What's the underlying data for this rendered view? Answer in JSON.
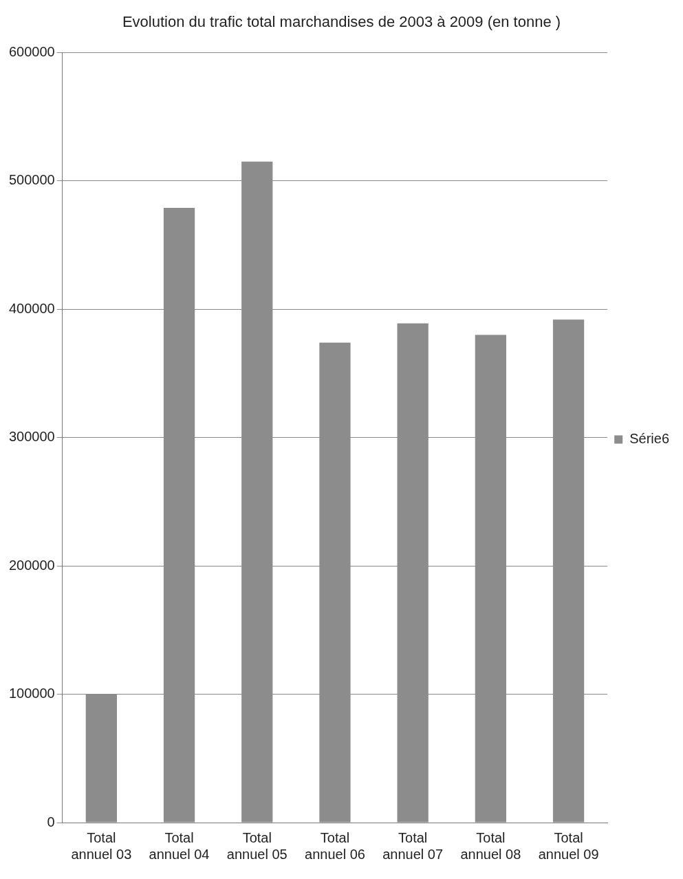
{
  "chart_data": {
    "type": "bar",
    "title": "Evolution du trafic total marchandises de 2003 à 2009 (en tonne )",
    "categories": [
      "Total annuel 03",
      "Total annuel 04",
      "Total annuel 05",
      "Total annuel 06",
      "Total annuel 07",
      "Total annuel 08",
      "Total annuel 09"
    ],
    "series": [
      {
        "name": "Série6",
        "color": "#8c8c8c",
        "values": [
          100000,
          479000,
          515000,
          374000,
          389000,
          380000,
          392000
        ]
      }
    ],
    "ylim": [
      0,
      600000
    ],
    "yticks": [
      0,
      100000,
      200000,
      300000,
      400000,
      500000,
      600000
    ],
    "grid": "y",
    "legend": "right"
  }
}
